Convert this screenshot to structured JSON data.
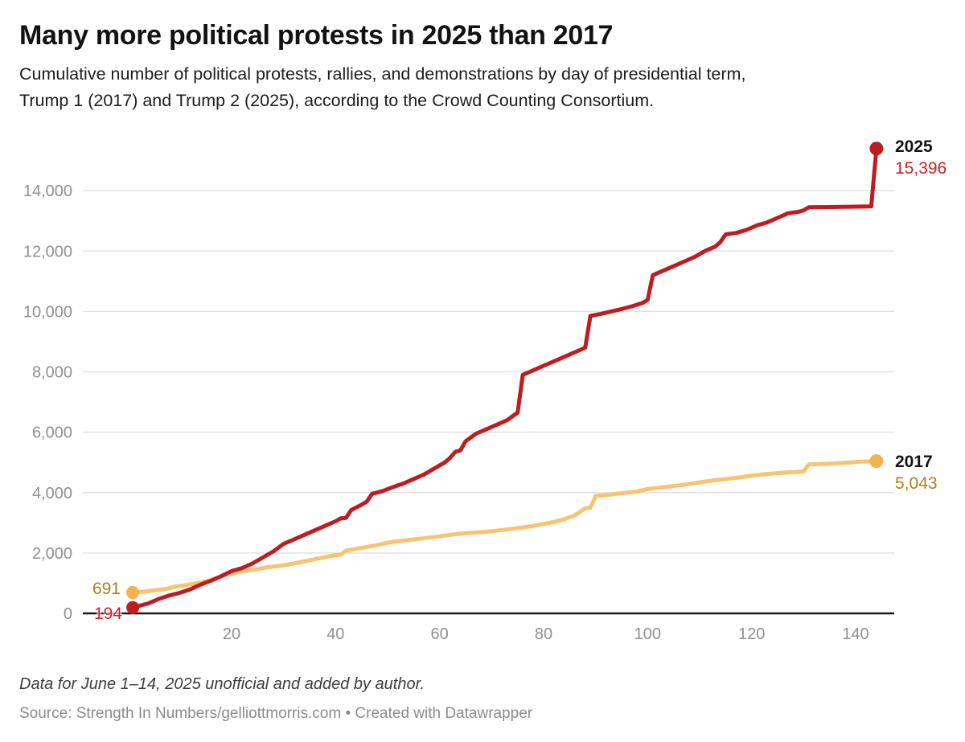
{
  "chart_data": {
    "type": "line",
    "title": "Many more political protests in 2025 than 2017",
    "subtitle_lines": [
      "Cumulative number of political protests, rallies, and demonstrations by day of presidential term,",
      "Trump 1 (2017) and Trump 2 (2025), according to the Crowd Counting Consortium."
    ],
    "xlabel": "",
    "ylabel": "",
    "xlim": [
      1,
      146
    ],
    "ylim": [
      0,
      16000
    ],
    "grid": "horizontal",
    "legend_position": "direct-labels-right",
    "x_ticks": [
      20,
      40,
      60,
      80,
      100,
      120,
      140
    ],
    "x_tick_labels": [
      "20",
      "40",
      "60",
      "80",
      "100",
      "120",
      "140"
    ],
    "y_ticks": [
      0,
      2000,
      4000,
      6000,
      8000,
      10000,
      12000,
      14000
    ],
    "y_tick_labels": [
      "0",
      "2,000",
      "4,000",
      "6,000",
      "8,000",
      "10,000",
      "12,000",
      "14,000"
    ],
    "grid_color": "#e2e2e2",
    "baseline_color": "#1a1a1a",
    "tick_label_color": "#909090",
    "series": [
      {
        "name": "2017",
        "line_color": "#f8c471",
        "dot_color": "#f3b152",
        "label_color": "#aa7f1e",
        "start_value": 691,
        "start_value_label": "691",
        "end_value": 5043,
        "end_value_label": "5,043",
        "points": [
          [
            1,
            691
          ],
          [
            3,
            720
          ],
          [
            5,
            760
          ],
          [
            7,
            800
          ],
          [
            8,
            830
          ],
          [
            9,
            880
          ],
          [
            11,
            930
          ],
          [
            13,
            990
          ],
          [
            15,
            1060
          ],
          [
            17,
            1160
          ],
          [
            19,
            1280
          ],
          [
            21,
            1360
          ],
          [
            23,
            1420
          ],
          [
            25,
            1470
          ],
          [
            27,
            1530
          ],
          [
            29,
            1570
          ],
          [
            31,
            1620
          ],
          [
            33,
            1690
          ],
          [
            35,
            1760
          ],
          [
            37,
            1830
          ],
          [
            39,
            1900
          ],
          [
            41,
            1950
          ],
          [
            42,
            2080
          ],
          [
            44,
            2140
          ],
          [
            46,
            2200
          ],
          [
            48,
            2260
          ],
          [
            50,
            2340
          ],
          [
            52,
            2390
          ],
          [
            54,
            2430
          ],
          [
            56,
            2470
          ],
          [
            58,
            2510
          ],
          [
            60,
            2550
          ],
          [
            62,
            2600
          ],
          [
            64,
            2640
          ],
          [
            66,
            2670
          ],
          [
            68,
            2690
          ],
          [
            70,
            2720
          ],
          [
            72,
            2760
          ],
          [
            74,
            2800
          ],
          [
            76,
            2850
          ],
          [
            78,
            2900
          ],
          [
            80,
            2960
          ],
          [
            82,
            3030
          ],
          [
            84,
            3120
          ],
          [
            86,
            3250
          ],
          [
            88,
            3480
          ],
          [
            89,
            3500
          ],
          [
            90,
            3890
          ],
          [
            92,
            3920
          ],
          [
            94,
            3960
          ],
          [
            96,
            4000
          ],
          [
            98,
            4040
          ],
          [
            100,
            4120
          ],
          [
            102,
            4160
          ],
          [
            104,
            4200
          ],
          [
            106,
            4240
          ],
          [
            108,
            4290
          ],
          [
            110,
            4340
          ],
          [
            112,
            4390
          ],
          [
            114,
            4430
          ],
          [
            116,
            4470
          ],
          [
            118,
            4510
          ],
          [
            120,
            4560
          ],
          [
            122,
            4600
          ],
          [
            124,
            4630
          ],
          [
            126,
            4660
          ],
          [
            128,
            4680
          ],
          [
            130,
            4700
          ],
          [
            131,
            4930
          ],
          [
            133,
            4950
          ],
          [
            135,
            4960
          ],
          [
            137,
            4980
          ],
          [
            139,
            5000
          ],
          [
            141,
            5025
          ],
          [
            143,
            5035
          ],
          [
            144,
            5043
          ]
        ]
      },
      {
        "name": "2025",
        "line_color": "#bf1c22",
        "dot_color": "#bf1c22",
        "label_color": "#ce2127",
        "start_value": 194,
        "start_value_label": "194",
        "end_value": 15396,
        "end_value_label": "15,396",
        "points": [
          [
            1,
            194
          ],
          [
            2,
            240
          ],
          [
            4,
            330
          ],
          [
            6,
            480
          ],
          [
            8,
            590
          ],
          [
            10,
            680
          ],
          [
            12,
            790
          ],
          [
            14,
            950
          ],
          [
            16,
            1080
          ],
          [
            18,
            1230
          ],
          [
            20,
            1400
          ],
          [
            22,
            1500
          ],
          [
            24,
            1650
          ],
          [
            26,
            1850
          ],
          [
            28,
            2050
          ],
          [
            30,
            2300
          ],
          [
            32,
            2450
          ],
          [
            34,
            2600
          ],
          [
            36,
            2750
          ],
          [
            38,
            2900
          ],
          [
            40,
            3050
          ],
          [
            41,
            3150
          ],
          [
            42,
            3160
          ],
          [
            43,
            3420
          ],
          [
            45,
            3600
          ],
          [
            46,
            3700
          ],
          [
            47,
            3960
          ],
          [
            49,
            4050
          ],
          [
            51,
            4180
          ],
          [
            53,
            4300
          ],
          [
            55,
            4450
          ],
          [
            57,
            4600
          ],
          [
            59,
            4800
          ],
          [
            61,
            5000
          ],
          [
            62,
            5150
          ],
          [
            63,
            5350
          ],
          [
            64,
            5400
          ],
          [
            65,
            5700
          ],
          [
            67,
            5950
          ],
          [
            69,
            6100
          ],
          [
            71,
            6250
          ],
          [
            73,
            6400
          ],
          [
            75,
            6650
          ],
          [
            76,
            7900
          ],
          [
            78,
            8050
          ],
          [
            80,
            8200
          ],
          [
            82,
            8350
          ],
          [
            84,
            8500
          ],
          [
            86,
            8650
          ],
          [
            88,
            8800
          ],
          [
            89,
            9850
          ],
          [
            91,
            9920
          ],
          [
            93,
            10000
          ],
          [
            95,
            10080
          ],
          [
            97,
            10170
          ],
          [
            99,
            10280
          ],
          [
            100,
            10380
          ],
          [
            101,
            11200
          ],
          [
            103,
            11350
          ],
          [
            105,
            11500
          ],
          [
            107,
            11650
          ],
          [
            109,
            11800
          ],
          [
            111,
            12000
          ],
          [
            113,
            12150
          ],
          [
            114,
            12300
          ],
          [
            115,
            12550
          ],
          [
            117,
            12600
          ],
          [
            119,
            12700
          ],
          [
            121,
            12850
          ],
          [
            123,
            12950
          ],
          [
            125,
            13100
          ],
          [
            127,
            13250
          ],
          [
            129,
            13300
          ],
          [
            130,
            13350
          ],
          [
            131,
            13450
          ],
          [
            135,
            13460
          ],
          [
            139,
            13470
          ],
          [
            143,
            13480
          ],
          [
            144,
            15396
          ]
        ]
      }
    ]
  },
  "footer": {
    "note": "Data for June 1–14, 2025 unofficial and added by author.",
    "source": "Source: Strength In Numbers/gelliottmorris.com • Created with Datawrapper"
  }
}
